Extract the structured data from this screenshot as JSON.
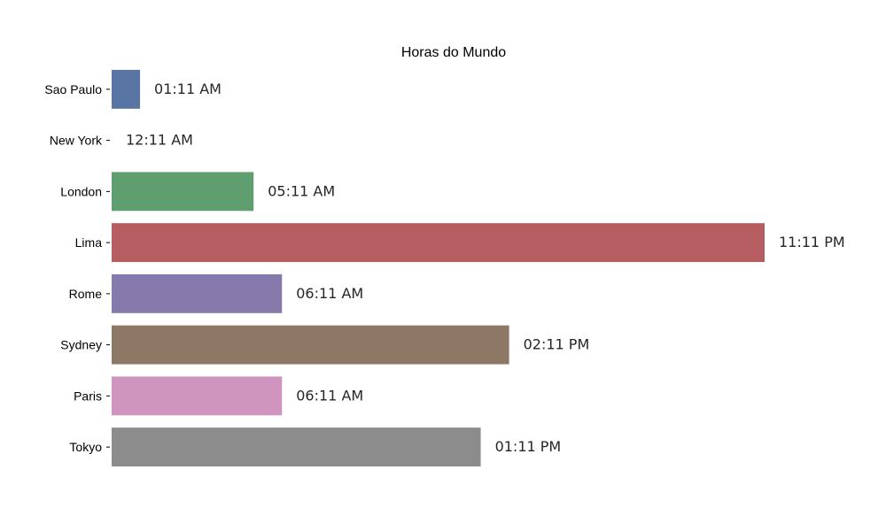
{
  "chart_data": {
    "type": "bar",
    "orientation": "horizontal",
    "title": "Horas do Mundo",
    "xlabel": "",
    "ylabel": "",
    "grid": false,
    "xlim": [
      0,
      23
    ],
    "categories": [
      "Sao Paulo",
      "New York",
      "London",
      "Lima",
      "Rome",
      "Sydney",
      "Paris",
      "Tokyo"
    ],
    "values": [
      1,
      0,
      5,
      23,
      6,
      14,
      6,
      13
    ],
    "labels": [
      "01:11 AM",
      "12:11 AM",
      "05:11 AM",
      "11:11 PM",
      "06:11 AM",
      "02:11 PM",
      "06:11 AM",
      "01:11 PM"
    ],
    "colors": [
      "#5975a4",
      "#cc8963",
      "#5f9e6e",
      "#b55d60",
      "#857aab",
      "#8d7866",
      "#d095bf",
      "#8c8c8c"
    ]
  }
}
